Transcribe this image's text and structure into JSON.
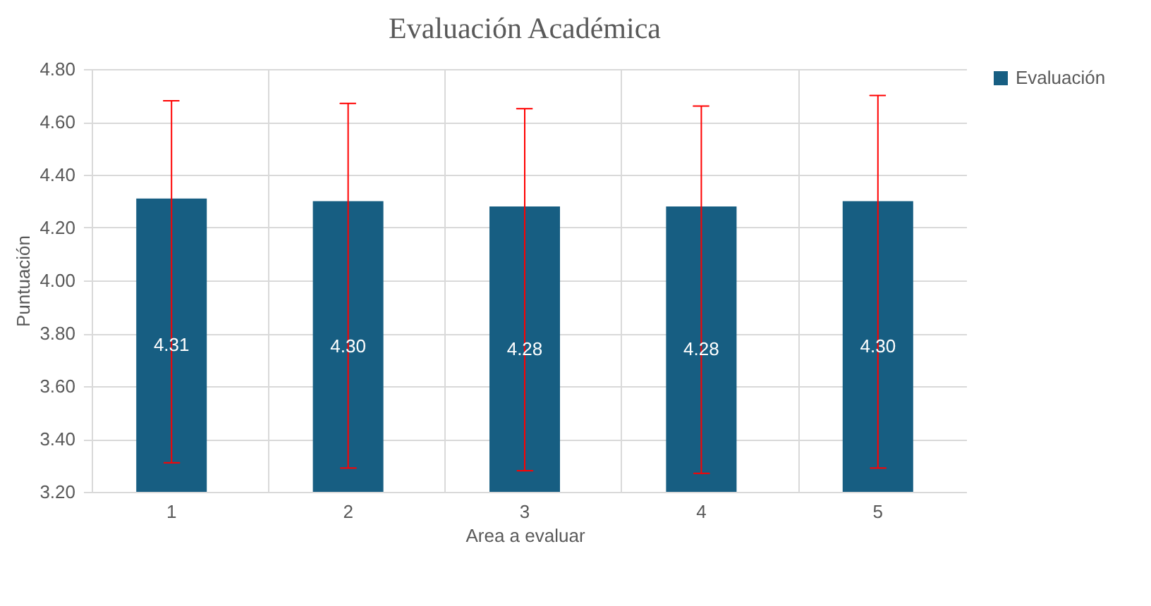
{
  "chart_data": {
    "type": "bar",
    "title": "Evaluación Académica",
    "xlabel": "Area a evaluar",
    "ylabel": "Puntuación",
    "categories": [
      "1",
      "2",
      "3",
      "4",
      "5"
    ],
    "series": [
      {
        "name": "Evaluación",
        "color": "#175e82",
        "values": [
          4.31,
          4.3,
          4.28,
          4.28,
          4.3
        ],
        "value_labels": [
          "4.31",
          "4.30",
          "4.28",
          "4.28",
          "4.30"
        ],
        "errors": [
          [
            3.31,
            4.68
          ],
          [
            3.29,
            4.67
          ],
          [
            3.28,
            4.65
          ],
          [
            3.27,
            4.66
          ],
          [
            3.29,
            4.7
          ]
        ]
      }
    ],
    "ylim": [
      3.2,
      4.8
    ],
    "yticks": [
      {
        "value": 3.2,
        "label": "3.20"
      },
      {
        "value": 3.4,
        "label": "3.40"
      },
      {
        "value": 3.6,
        "label": "3.60"
      },
      {
        "value": 3.8,
        "label": "3.80"
      },
      {
        "value": 4.0,
        "label": "4.00"
      },
      {
        "value": 4.2,
        "label": "4.20"
      },
      {
        "value": 4.4,
        "label": "4.40"
      },
      {
        "value": 4.6,
        "label": "4.60"
      },
      {
        "value": 4.8,
        "label": "4.80"
      }
    ],
    "grid": true,
    "legend": "right"
  }
}
